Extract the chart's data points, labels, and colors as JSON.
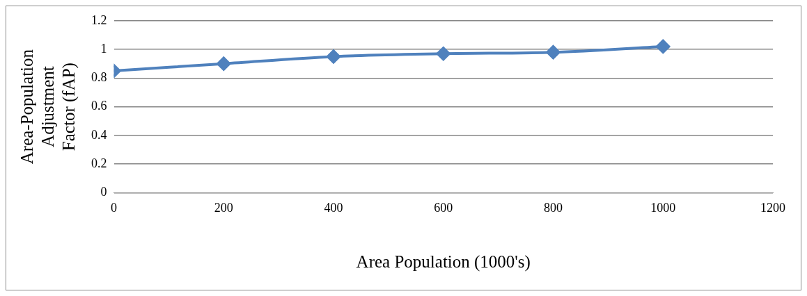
{
  "chart_data": {
    "type": "line",
    "xlabel": "Area Population (1000's)",
    "ylabel": "Area-Population Adjustment Factor (fAP)",
    "x": [
      0,
      200,
      400,
      600,
      800,
      1000
    ],
    "series": [
      {
        "color": "#4f81bd",
        "values": [
          0.85,
          0.9,
          0.95,
          0.97,
          0.98,
          1.02
        ]
      }
    ],
    "xlim": [
      0,
      1200
    ],
    "xticks": [
      0,
      200,
      400,
      600,
      800,
      1000,
      1200
    ],
    "ylim": [
      0,
      1.2
    ],
    "yticks": [
      0,
      0.2,
      0.4,
      0.6,
      0.8,
      1,
      1.2
    ],
    "grid": "y",
    "marker": "diamond",
    "legend": false
  }
}
